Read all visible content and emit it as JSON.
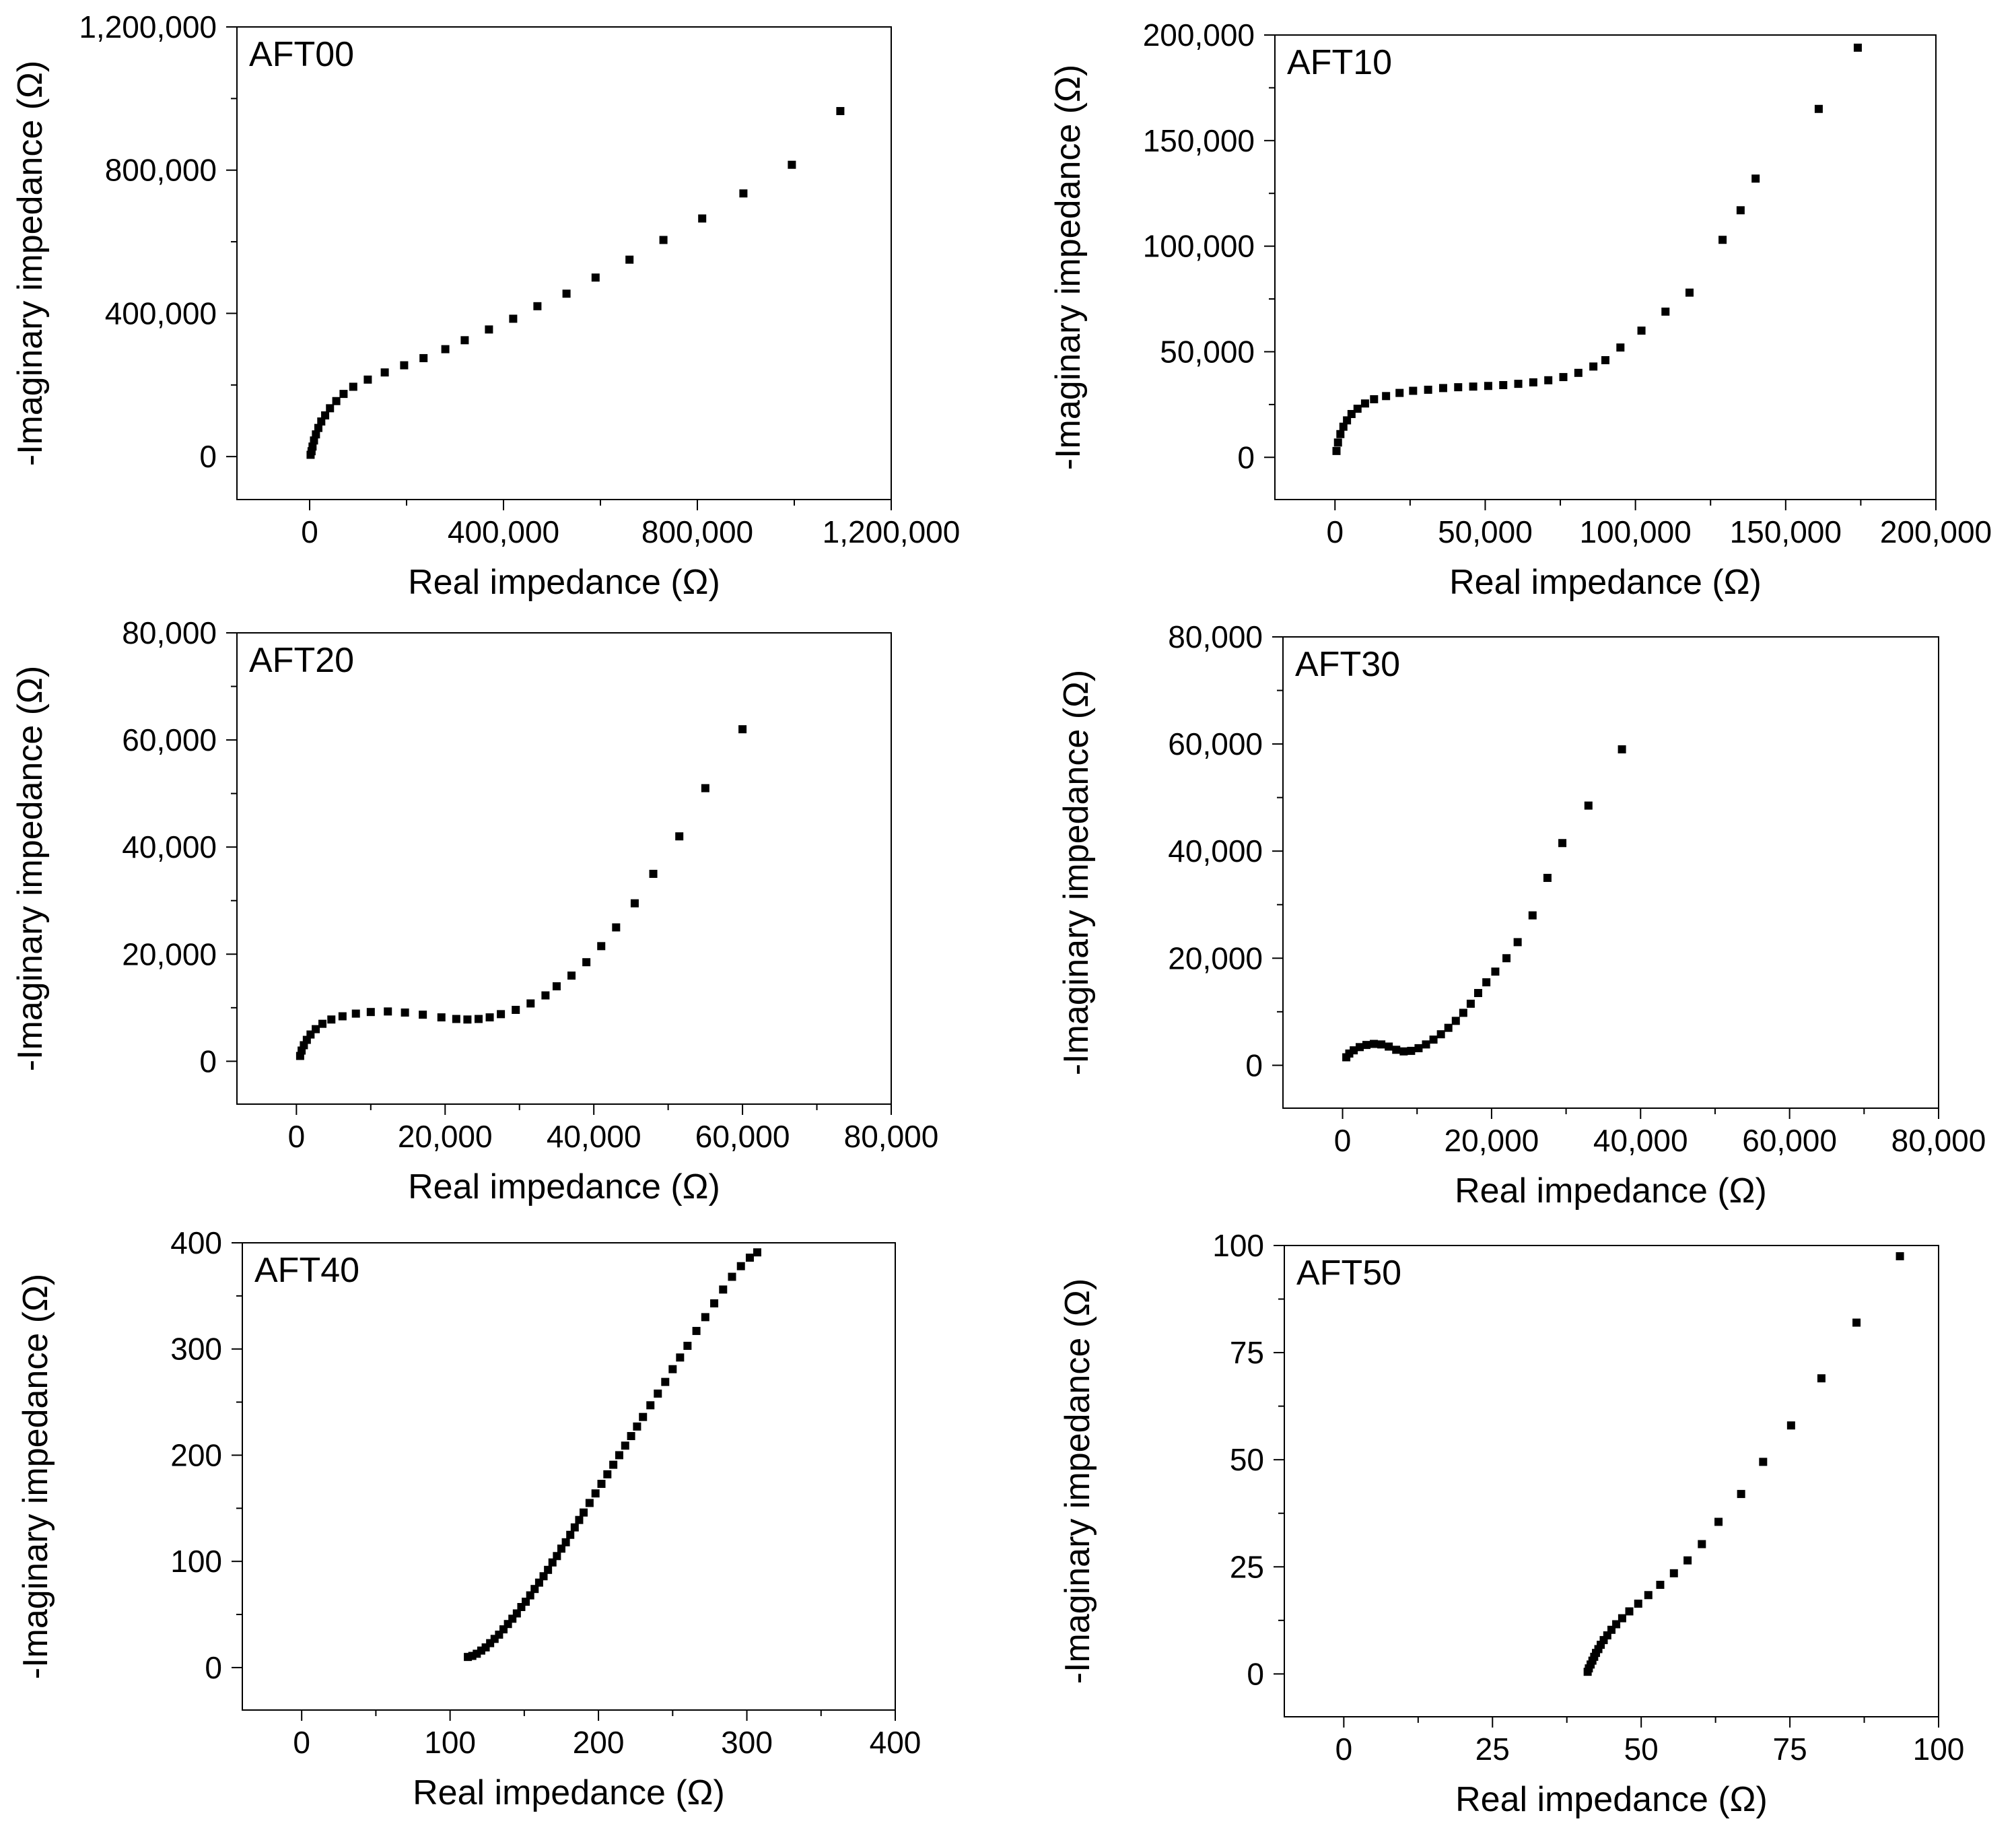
{
  "figure": {
    "colors": {
      "marker": "#000000",
      "axis": "#000000",
      "background": "#ffffff"
    },
    "marker_shape": "square"
  },
  "chart_data": [
    {
      "type": "scatter",
      "label": "AFT00",
      "xlabel": "Real impedance (Ω)",
      "ylabel": "-Imaginary impedance (Ω)",
      "xlim": [
        -150000,
        1200000
      ],
      "ylim": [
        -120000,
        1200000
      ],
      "xticks": [
        0,
        400000,
        800000,
        1200000
      ],
      "xtick_labels": [
        "0",
        "400,000",
        "800,000",
        "1,200,000"
      ],
      "yticks": [
        0,
        400000,
        800000,
        1200000
      ],
      "ytick_labels": [
        "0",
        "400,000",
        "800,000",
        "1,200,000"
      ],
      "x": [
        2000,
        4000,
        6000,
        9000,
        13000,
        18000,
        24000,
        32000,
        42000,
        55000,
        70000,
        90000,
        120000,
        155000,
        195000,
        235000,
        280000,
        320000,
        370000,
        420000,
        470000,
        530000,
        590000,
        660000,
        730000,
        810000,
        895000,
        995000,
        1095000
      ],
      "y": [
        5000,
        15000,
        28000,
        45000,
        62000,
        80000,
        98000,
        115000,
        135000,
        155000,
        175000,
        195000,
        215000,
        235000,
        255000,
        275000,
        300000,
        325000,
        355000,
        385000,
        420000,
        455000,
        500000,
        550000,
        605000,
        665000,
        735000,
        815000,
        965000
      ]
    },
    {
      "type": "scatter",
      "label": "AFT10",
      "xlabel": "Real impedance (Ω)",
      "ylabel": "-Imaginary impedance (Ω)",
      "xlim": [
        -20000,
        200000
      ],
      "ylim": [
        -20000,
        200000
      ],
      "xticks": [
        0,
        50000,
        100000,
        150000,
        200000
      ],
      "xtick_labels": [
        "0",
        "50,000",
        "100,000",
        "150,000",
        "200,000"
      ],
      "yticks": [
        0,
        50000,
        100000,
        150000,
        200000
      ],
      "ytick_labels": [
        "0",
        "50,000",
        "100,000",
        "150,000",
        "200,000"
      ],
      "x": [
        500,
        1000,
        1800,
        2800,
        4000,
        5500,
        7500,
        10000,
        13000,
        17000,
        21500,
        26000,
        31000,
        36000,
        41000,
        46000,
        51000,
        56000,
        61000,
        66000,
        71000,
        76000,
        81000,
        86000,
        90000,
        95000,
        102000,
        110000,
        118000,
        129000,
        135000,
        140000,
        161000,
        174000
      ],
      "y": [
        3000,
        7000,
        11000,
        14500,
        17500,
        20500,
        23000,
        25500,
        27500,
        29000,
        30500,
        31500,
        32000,
        32800,
        33200,
        33500,
        33800,
        34200,
        34800,
        35500,
        36500,
        38000,
        40000,
        43000,
        46000,
        52000,
        60000,
        69000,
        78000,
        103000,
        117000,
        132000,
        165000,
        194000
      ]
    },
    {
      "type": "scatter",
      "label": "AFT20",
      "xlabel": "Real impedance (Ω)",
      "ylabel": "-Imaginary impedance (Ω)",
      "xlim": [
        -8000,
        80000
      ],
      "ylim": [
        -8000,
        80000
      ],
      "xticks": [
        0,
        20000,
        40000,
        60000,
        80000
      ],
      "xtick_labels": [
        "0",
        "20,000",
        "40,000",
        "60,000",
        "80,000"
      ],
      "yticks": [
        0,
        20000,
        40000,
        60000,
        80000
      ],
      "ytick_labels": [
        "0",
        "20,000",
        "40,000",
        "60,000",
        "80,000"
      ],
      "x": [
        500,
        700,
        1000,
        1400,
        1900,
        2600,
        3500,
        4700,
        6200,
        8000,
        10000,
        12300,
        14600,
        17000,
        19500,
        21500,
        23000,
        24500,
        26000,
        27500,
        29500,
        31500,
        33500,
        35000,
        37000,
        39000,
        41000,
        43000,
        45500,
        48000,
        51500,
        55000,
        60000
      ],
      "y": [
        1000,
        2000,
        3000,
        4000,
        5000,
        6000,
        7000,
        7800,
        8400,
        8900,
        9200,
        9300,
        9100,
        8700,
        8200,
        7900,
        7800,
        7900,
        8200,
        8800,
        9600,
        10800,
        12300,
        14000,
        16000,
        18500,
        21500,
        25000,
        29500,
        35000,
        42000,
        51000,
        62000
      ]
    },
    {
      "type": "scatter",
      "label": "AFT30",
      "xlabel": "Real impedance (Ω)",
      "ylabel": "-Imaginary impedance (Ω)",
      "xlim": [
        -8000,
        80000
      ],
      "ylim": [
        -8000,
        80000
      ],
      "xticks": [
        0,
        20000,
        40000,
        60000,
        80000
      ],
      "xtick_labels": [
        "0",
        "20,000",
        "40,000",
        "60,000",
        "80,000"
      ],
      "yticks": [
        0,
        20000,
        40000,
        60000,
        80000
      ],
      "ytick_labels": [
        "0",
        "20,000",
        "40,000",
        "60,000",
        "80,000"
      ],
      "x": [
        500,
        900,
        1500,
        2300,
        3200,
        4200,
        5200,
        6200,
        7200,
        8200,
        9200,
        10200,
        11200,
        12200,
        13200,
        14200,
        15200,
        16200,
        17200,
        18200,
        19300,
        20500,
        22000,
        23500,
        25500,
        27500,
        29500,
        33000,
        37500
      ],
      "y": [
        1500,
        2200,
        2800,
        3400,
        3800,
        4000,
        3900,
        3500,
        2900,
        2600,
        2700,
        3200,
        3900,
        4800,
        5800,
        7000,
        8300,
        9800,
        11500,
        13500,
        15500,
        17500,
        20000,
        23000,
        28000,
        35000,
        41500,
        48500,
        59000
      ]
    },
    {
      "type": "scatter",
      "label": "AFT40",
      "xlabel": "Real impedance (Ω)",
      "ylabel": "-Imaginary impedance (Ω)",
      "xlim": [
        -40,
        400
      ],
      "ylim": [
        -40,
        400
      ],
      "xticks": [
        0,
        100,
        200,
        300,
        400
      ],
      "xtick_labels": [
        "0",
        "100",
        "200",
        "300",
        "400"
      ],
      "yticks": [
        0,
        100,
        200,
        300,
        400
      ],
      "ytick_labels": [
        "0",
        "100",
        "200",
        "300",
        "400"
      ],
      "x": [
        112,
        115,
        118,
        121,
        124,
        127,
        130,
        133,
        136,
        139,
        142,
        145,
        148,
        151,
        154,
        157,
        160,
        163,
        166,
        169,
        172,
        175,
        178,
        181,
        184,
        187,
        190,
        194,
        198,
        202,
        206,
        210,
        214,
        218,
        222,
        226,
        230,
        235,
        240,
        245,
        250,
        255,
        260,
        266,
        272,
        278,
        284,
        290,
        296,
        302,
        307
      ],
      "y": [
        10,
        11,
        13,
        16,
        19,
        23,
        27,
        31,
        36,
        41,
        46,
        51,
        57,
        62,
        68,
        74,
        80,
        86,
        92,
        99,
        105,
        112,
        118,
        125,
        132,
        139,
        146,
        155,
        164,
        173,
        182,
        191,
        200,
        209,
        218,
        227,
        236,
        247,
        258,
        269,
        281,
        292,
        303,
        317,
        330,
        343,
        356,
        368,
        378,
        386,
        391
      ]
    },
    {
      "type": "scatter",
      "label": "AFT50",
      "xlabel": "Real impedance (Ω)",
      "ylabel": "-Imaginary impedance (Ω)",
      "xlim": [
        -10,
        100
      ],
      "ylim": [
        -10,
        100
      ],
      "xticks": [
        0,
        25,
        50,
        75,
        100
      ],
      "xtick_labels": [
        "0",
        "25",
        "50",
        "75",
        "100"
      ],
      "yticks": [
        0,
        25,
        50,
        75,
        100
      ],
      "ytick_labels": [
        "0",
        "25",
        "50",
        "75",
        "100"
      ],
      "x": [
        41,
        41.2,
        41.5,
        41.8,
        42.1,
        42.4,
        42.8,
        43.2,
        43.7,
        44.3,
        45,
        45.8,
        46.8,
        48,
        49.5,
        51.2,
        53.2,
        55.5,
        57.8,
        60.2,
        63,
        66.8,
        70.5,
        75.2,
        80.3,
        86.2,
        93.5
      ],
      "y": [
        0.5,
        1.3,
        2.2,
        3.1,
        4,
        4.9,
        5.8,
        6.8,
        7.9,
        9,
        10.3,
        11.6,
        13,
        14.6,
        16.4,
        18.4,
        20.8,
        23.5,
        26.5,
        30.3,
        35.5,
        42,
        49.5,
        58,
        69,
        82,
        97.5
      ]
    }
  ]
}
